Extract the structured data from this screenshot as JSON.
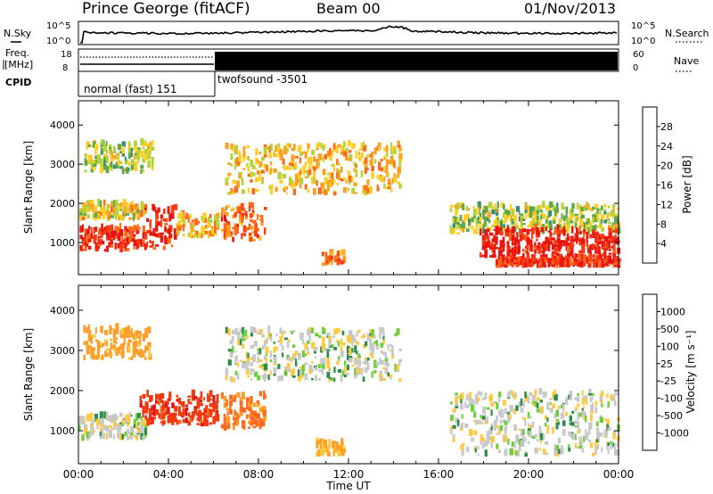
{
  "header": {
    "station": "Prince George (fitACF)",
    "beam": "Beam 00",
    "date": "01/Nov/2013"
  },
  "noise_panel": {
    "left_label": "N.Sky",
    "right_label": "N.Search",
    "left_ticks": [
      "10^5",
      "10^0"
    ],
    "right_ticks": [
      "10^5",
      "10^0"
    ]
  },
  "freq_panel": {
    "left_label_line1": "Freq.",
    "left_label_line2": "[MHz]",
    "left_ticks": [
      "18",
      "8"
    ],
    "right_label": "Nave",
    "right_ticks": [
      "60",
      "0"
    ]
  },
  "cpid_panel": {
    "label": "CPID",
    "modes": [
      {
        "name": "normal (fast) 151",
        "start_hour": 0,
        "end_hour": 6.0
      },
      {
        "name": "twofsound -3501",
        "start_hour": 6.0,
        "end_hour": 24
      }
    ]
  },
  "chart_data": [
    {
      "type": "heatmap",
      "name": "power",
      "xlabel": "Time UT",
      "ylabel": "Slant Range [km]",
      "x_ticks": [
        "00:00",
        "04:00",
        "08:00",
        "12:00",
        "16:00",
        "20:00",
        "00:00"
      ],
      "xlim_hours": [
        0,
        24
      ],
      "y_ticks": [
        1000,
        2000,
        3000,
        4000
      ],
      "ylim_km": [
        180,
        4620
      ],
      "colorbar_label": "Power [dB]",
      "colorbar_ticks": [
        "4",
        "8",
        "12",
        "16",
        "20",
        "24",
        "28"
      ],
      "colorbar_colors": [
        "#1f1fe8",
        "#3f56b2",
        "#3a8c6e",
        "#5fa84a",
        "#b6d23a",
        "#ffcf27",
        "#ff9f1e",
        "#ff6a1a",
        "#ff3b14",
        "#e8140f"
      ],
      "echo_regions": [
        {
          "t0": 0.2,
          "t1": 3.3,
          "r0": 2750,
          "r1": 3500,
          "level": 0.45
        },
        {
          "t0": 0.0,
          "t1": 3.0,
          "r0": 1550,
          "r1": 1950,
          "level": 0.55
        },
        {
          "t0": 0.0,
          "t1": 2.7,
          "r0": 750,
          "r1": 1350,
          "level": 0.88
        },
        {
          "t0": 2.7,
          "t1": 4.3,
          "r0": 800,
          "r1": 1850,
          "level": 0.93
        },
        {
          "t0": 4.3,
          "t1": 6.2,
          "r0": 1100,
          "r1": 1650,
          "level": 0.6
        },
        {
          "t0": 6.3,
          "t1": 8.3,
          "r0": 1000,
          "r1": 1900,
          "level": 0.75
        },
        {
          "t0": 6.5,
          "t1": 14.3,
          "r0": 2200,
          "r1": 3450,
          "level": 0.6
        },
        {
          "t0": 10.8,
          "t1": 11.8,
          "r0": 400,
          "r1": 700,
          "level": 0.75
        },
        {
          "t0": 16.5,
          "t1": 24.0,
          "r0": 1200,
          "r1": 1900,
          "level": 0.45
        },
        {
          "t0": 17.8,
          "t1": 24.0,
          "r0": 600,
          "r1": 1300,
          "level": 0.95
        },
        {
          "t0": 18.5,
          "t1": 24.0,
          "r0": 350,
          "r1": 550,
          "level": 0.9
        }
      ]
    },
    {
      "type": "heatmap",
      "name": "velocity",
      "xlabel": "Time UT",
      "ylabel": "Slant Range [km]",
      "x_ticks": [
        "00:00",
        "04:00",
        "08:00",
        "12:00",
        "16:00",
        "20:00",
        "00:00"
      ],
      "xlim_hours": [
        0,
        24
      ],
      "y_ticks": [
        1000,
        2000,
        3000,
        4000
      ],
      "ylim_km": [
        180,
        4620
      ],
      "colorbar_label": "Velocity [m s⁻¹]",
      "colorbar_ticks": [
        "1000",
        "500",
        "100",
        "25",
        "-25",
        "-100",
        "-500",
        "-1000"
      ],
      "colorbar_colors": [
        "#2838c8",
        "#3a6fb0",
        "#2e8d4a",
        "#6ccf3a",
        "#c8c8c8",
        "#c8c8c8",
        "#ffc940",
        "#ff9e28",
        "#ff6a1c",
        "#f03a12",
        "#e01010"
      ],
      "echo_regions": [
        {
          "t0": 0.0,
          "t1": 3.0,
          "r0": 750,
          "r1": 1350,
          "vel": 0
        },
        {
          "t0": 0.2,
          "t1": 3.2,
          "r0": 2750,
          "r1": 3500,
          "vel": -300
        },
        {
          "t0": 2.7,
          "t1": 6.2,
          "r0": 1100,
          "r1": 1850,
          "vel": -800
        },
        {
          "t0": 6.3,
          "t1": 8.3,
          "r0": 1000,
          "r1": 1900,
          "vel": -500
        },
        {
          "t0": 6.5,
          "t1": 14.3,
          "r0": 2200,
          "r1": 3450,
          "vel": 0
        },
        {
          "t0": 10.5,
          "t1": 11.8,
          "r0": 350,
          "r1": 700,
          "vel": -200
        },
        {
          "t0": 16.5,
          "t1": 24.0,
          "r0": 350,
          "r1": 1900,
          "vel": 0
        }
      ]
    }
  ]
}
